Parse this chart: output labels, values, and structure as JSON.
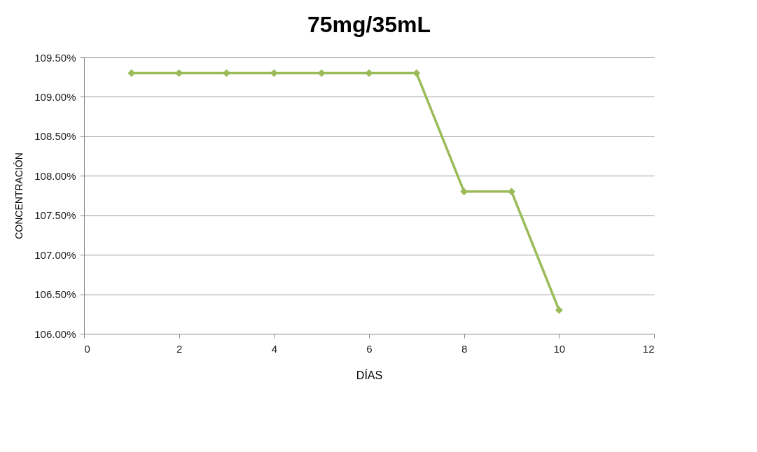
{
  "chart_data": {
    "type": "line",
    "title": "75mg/35mL",
    "xlabel": "DÍAS",
    "ylabel": "CONCENTRACIÓN",
    "x": [
      1,
      2,
      3,
      4,
      5,
      6,
      7,
      8,
      9,
      10
    ],
    "series": [
      {
        "color": "#9bbb59",
        "values": [
          109.3,
          109.3,
          109.3,
          109.3,
          109.3,
          109.3,
          109.3,
          107.8,
          107.8,
          106.3
        ]
      }
    ],
    "xlim": [
      0,
      12
    ],
    "xticks": [
      0,
      2,
      4,
      6,
      8,
      10,
      12
    ],
    "ylim": [
      106,
      109.5
    ],
    "yticks": [
      {
        "value": 106,
        "label": "106.00%"
      },
      {
        "value": 106.5,
        "label": "106.50%"
      },
      {
        "value": 107,
        "label": "107.00%"
      },
      {
        "value": 107.5,
        "label": "107.50%"
      },
      {
        "value": 108,
        "label": "108.00%"
      },
      {
        "value": 108.5,
        "label": "108.50%"
      },
      {
        "value": 109,
        "label": "109.00%"
      },
      {
        "value": 109.5,
        "label": "109.50%"
      }
    ],
    "grid": "y",
    "marker": "diamond",
    "line_style": "solid"
  }
}
